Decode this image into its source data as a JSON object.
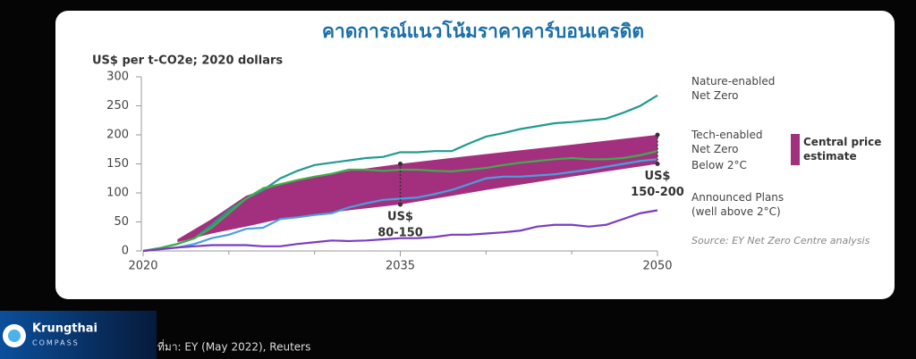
{
  "chart_data": {
    "type": "line",
    "title": "คาดการณ์แนวโน้มราคาคาร์บอนเครดิต",
    "y_label": "US$ per t-CO2e; 2020 dollars",
    "x": [
      2020,
      2021,
      2022,
      2023,
      2024,
      2025,
      2026,
      2027,
      2028,
      2029,
      2030,
      2031,
      2032,
      2033,
      2034,
      2035,
      2036,
      2037,
      2038,
      2039,
      2040,
      2041,
      2042,
      2043,
      2044,
      2045,
      2046,
      2047,
      2048,
      2049,
      2050
    ],
    "series": [
      {
        "name": "Nature-enabled Net Zero",
        "color": "#1f9b8f",
        "values": [
          0,
          5,
          12,
          22,
          45,
          70,
          90,
          105,
          125,
          138,
          148,
          152,
          156,
          160,
          162,
          170,
          170,
          172,
          172,
          185,
          197,
          203,
          210,
          215,
          220,
          222,
          225,
          228,
          238,
          250,
          268
        ]
      },
      {
        "name": "Tech-enabled Net Zero",
        "color": "#3fae49",
        "values": [
          0,
          5,
          12,
          22,
          40,
          65,
          90,
          108,
          115,
          122,
          128,
          133,
          140,
          140,
          138,
          140,
          140,
          138,
          137,
          140,
          143,
          148,
          152,
          155,
          158,
          160,
          158,
          158,
          160,
          165,
          172
        ]
      },
      {
        "name": "Below 2°C",
        "color": "#4a9fe0",
        "values": [
          0,
          3,
          6,
          12,
          22,
          28,
          38,
          40,
          55,
          58,
          62,
          65,
          75,
          82,
          88,
          90,
          92,
          98,
          105,
          115,
          125,
          128,
          128,
          130,
          132,
          136,
          140,
          145,
          150,
          155,
          158
        ]
      },
      {
        "name": "Announced Plans (well above 2°C)",
        "color": "#7a3cc2",
        "values": [
          0,
          3,
          6,
          8,
          10,
          10,
          10,
          8,
          8,
          12,
          15,
          18,
          17,
          18,
          20,
          22,
          22,
          24,
          28,
          28,
          30,
          32,
          35,
          42,
          45,
          45,
          42,
          45,
          55,
          65,
          70
        ]
      }
    ],
    "band": {
      "name": "Central price estimate",
      "color": "#a3307f",
      "x": [
        2022,
        2024,
        2026,
        2028,
        2030,
        2032,
        2035,
        2040,
        2045,
        2050
      ],
      "lower": [
        15,
        30,
        42,
        55,
        63,
        70,
        80,
        105,
        128,
        150
      ],
      "upper": [
        20,
        55,
        95,
        115,
        128,
        138,
        150,
        167,
        183,
        200
      ]
    },
    "annotations": [
      {
        "lines": [
          "US$",
          "80-150"
        ],
        "band_index": 6
      },
      {
        "lines": [
          "US$",
          "150-200"
        ],
        "band_index": 9
      }
    ],
    "source": "Source: EY Net Zero Centre analysis",
    "xlim": [
      2020,
      2050
    ],
    "xticks": [
      2020,
      2035,
      2050
    ],
    "xminorticks": [
      2025,
      2030,
      2040,
      2045
    ],
    "ylim": [
      0,
      300
    ],
    "yticks": [
      0,
      50,
      100,
      150,
      200,
      250,
      300
    ]
  },
  "footer": {
    "brand": "Krungthai",
    "sub": "COMPASS",
    "source": "ที่มา: EY (May 2022), Reuters"
  }
}
